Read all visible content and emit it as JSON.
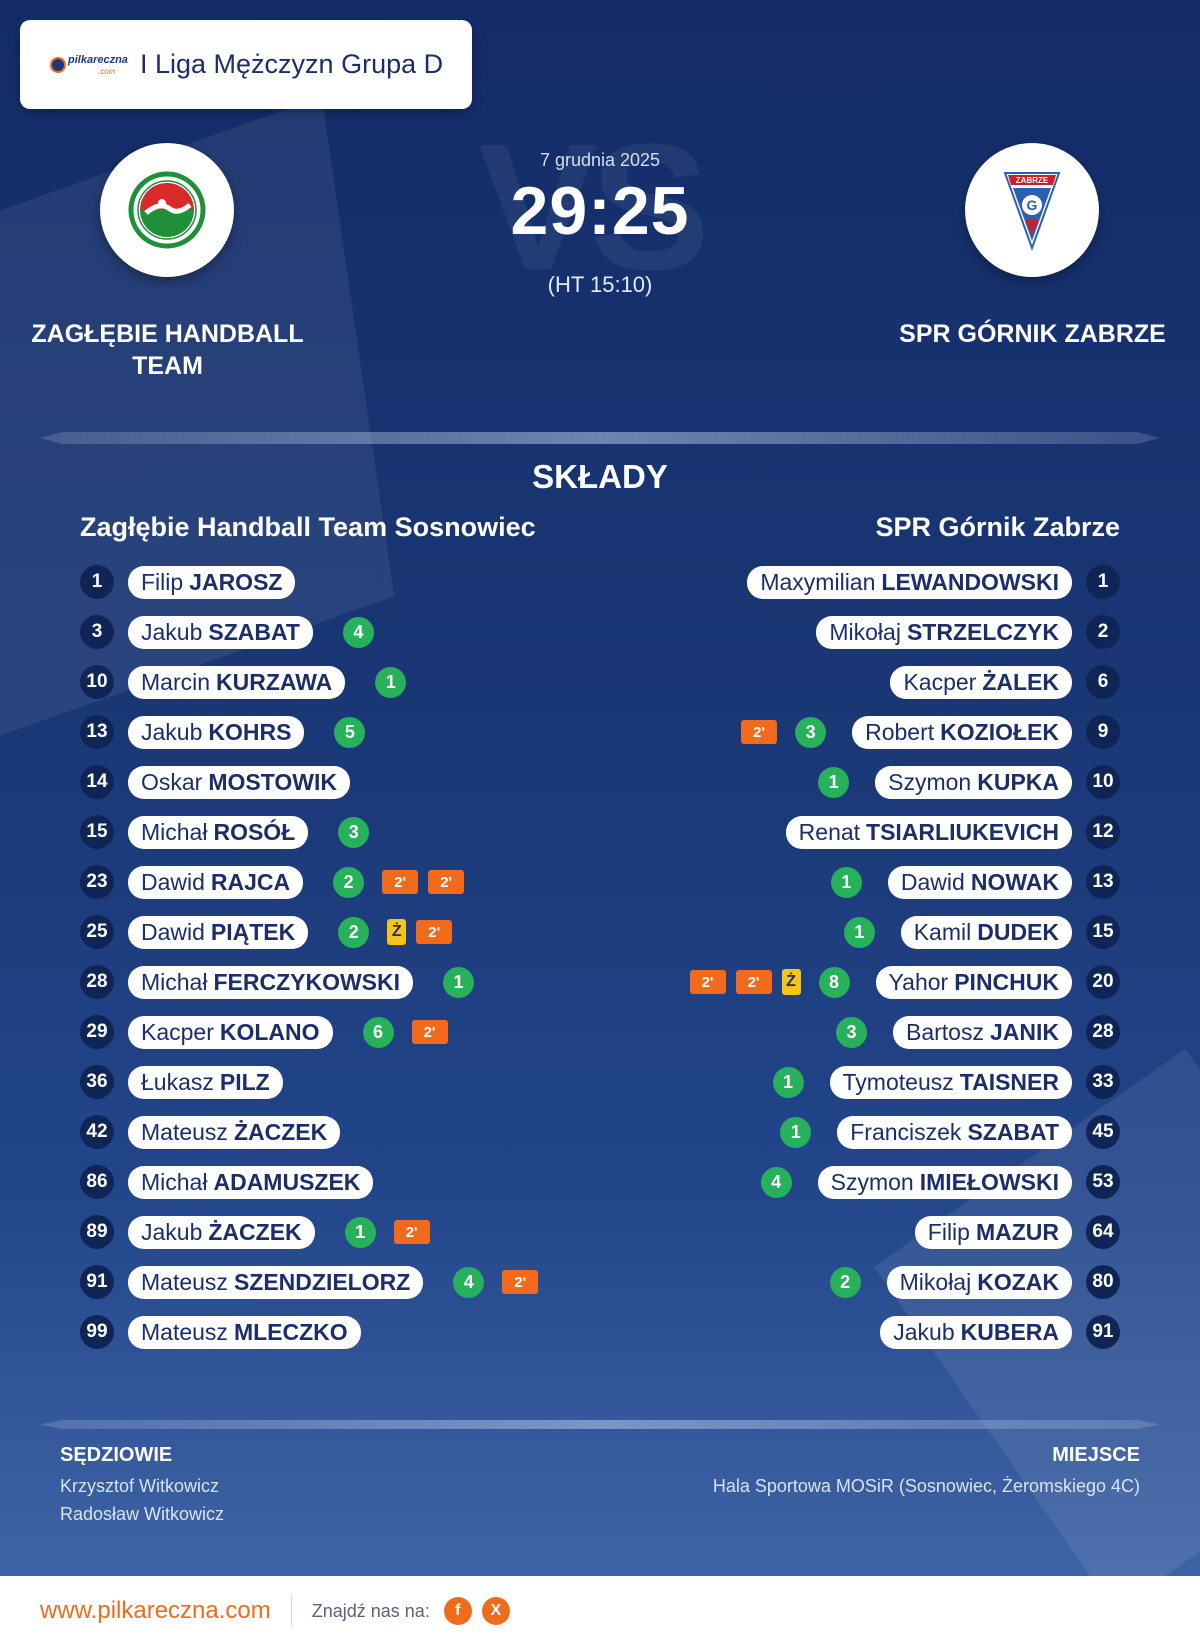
{
  "league": {
    "brand": "pilkareczna",
    "brand_sub": ".com",
    "name": "I Liga Mężczyzn Grupa D"
  },
  "match": {
    "date": "7 grudnia 2025",
    "score": "29:25",
    "halftime": "(HT 15:10)",
    "vs_text": "VS",
    "home_team": "ZAGŁĘBIE HANDBALL TEAM",
    "away_team": "SPR GÓRNIK ZABRZE",
    "away_badge_text": "ZABRZE"
  },
  "lineups": {
    "title": "SKŁADY",
    "home_title": "Zagłębie Handball Team Sosnowiec",
    "away_title": "SPR Górnik Zabrze",
    "home": [
      {
        "num": "1",
        "first": "Filip",
        "last": "JAROSZ",
        "goals": "",
        "yellow": false,
        "two_min": 0
      },
      {
        "num": "3",
        "first": "Jakub",
        "last": "SZABAT",
        "goals": "4",
        "yellow": false,
        "two_min": 0
      },
      {
        "num": "10",
        "first": "Marcin",
        "last": "KURZAWA",
        "goals": "1",
        "yellow": false,
        "two_min": 0
      },
      {
        "num": "13",
        "first": "Jakub",
        "last": "KOHRS",
        "goals": "5",
        "yellow": false,
        "two_min": 0
      },
      {
        "num": "14",
        "first": "Oskar",
        "last": "MOSTOWIK",
        "goals": "",
        "yellow": false,
        "two_min": 0
      },
      {
        "num": "15",
        "first": "Michał",
        "last": "ROSÓŁ",
        "goals": "3",
        "yellow": false,
        "two_min": 0
      },
      {
        "num": "23",
        "first": "Dawid",
        "last": "RAJCA",
        "goals": "2",
        "yellow": false,
        "two_min": 2
      },
      {
        "num": "25",
        "first": "Dawid",
        "last": "PIĄTEK",
        "goals": "2",
        "yellow": true,
        "two_min": 1
      },
      {
        "num": "28",
        "first": "Michał",
        "last": "FERCZYKOWSKI",
        "goals": "1",
        "yellow": false,
        "two_min": 0
      },
      {
        "num": "29",
        "first": "Kacper",
        "last": "KOLANO",
        "goals": "6",
        "yellow": false,
        "two_min": 1
      },
      {
        "num": "36",
        "first": "Łukasz",
        "last": "PILZ",
        "goals": "",
        "yellow": false,
        "two_min": 0
      },
      {
        "num": "42",
        "first": "Mateusz",
        "last": "ŻACZEK",
        "goals": "",
        "yellow": false,
        "two_min": 0
      },
      {
        "num": "86",
        "first": "Michał",
        "last": "ADAMUSZEK",
        "goals": "",
        "yellow": false,
        "two_min": 0
      },
      {
        "num": "89",
        "first": "Jakub",
        "last": "ŻACZEK",
        "goals": "1",
        "yellow": false,
        "two_min": 1
      },
      {
        "num": "91",
        "first": "Mateusz",
        "last": "SZENDZIELORZ",
        "goals": "4",
        "yellow": false,
        "two_min": 1
      },
      {
        "num": "99",
        "first": "Mateusz",
        "last": "MLECZKO",
        "goals": "",
        "yellow": false,
        "two_min": 0
      }
    ],
    "away": [
      {
        "num": "1",
        "first": "Maxymilian",
        "last": "LEWANDOWSKI",
        "goals": "",
        "yellow": false,
        "two_min": 0
      },
      {
        "num": "2",
        "first": "Mikołaj",
        "last": "STRZELCZYK",
        "goals": "",
        "yellow": false,
        "two_min": 0
      },
      {
        "num": "6",
        "first": "Kacper",
        "last": "ŻALEK",
        "goals": "",
        "yellow": false,
        "two_min": 0
      },
      {
        "num": "9",
        "first": "Robert",
        "last": "KOZIOŁEK",
        "goals": "3",
        "yellow": false,
        "two_min": 1
      },
      {
        "num": "10",
        "first": "Szymon",
        "last": "KUPKA",
        "goals": "1",
        "yellow": false,
        "two_min": 0
      },
      {
        "num": "12",
        "first": "Renat",
        "last": "TSIARLIUKEVICH",
        "goals": "",
        "yellow": false,
        "two_min": 0
      },
      {
        "num": "13",
        "first": "Dawid",
        "last": "NOWAK",
        "goals": "1",
        "yellow": false,
        "two_min": 0
      },
      {
        "num": "15",
        "first": "Kamil",
        "last": "DUDEK",
        "goals": "1",
        "yellow": false,
        "two_min": 0
      },
      {
        "num": "20",
        "first": "Yahor",
        "last": "PINCHUK",
        "goals": "8",
        "yellow": true,
        "two_min": 2
      },
      {
        "num": "28",
        "first": "Bartosz",
        "last": "JANIK",
        "goals": "3",
        "yellow": false,
        "two_min": 0
      },
      {
        "num": "33",
        "first": "Tymoteusz",
        "last": "TAISNER",
        "goals": "1",
        "yellow": false,
        "two_min": 0
      },
      {
        "num": "45",
        "first": "Franciszek",
        "last": "SZABAT",
        "goals": "1",
        "yellow": false,
        "two_min": 0
      },
      {
        "num": "53",
        "first": "Szymon",
        "last": "IMIEŁOWSKI",
        "goals": "4",
        "yellow": false,
        "two_min": 0
      },
      {
        "num": "64",
        "first": "Filip",
        "last": "MAZUR",
        "goals": "",
        "yellow": false,
        "two_min": 0
      },
      {
        "num": "80",
        "first": "Mikołaj",
        "last": "KOZAK",
        "goals": "2",
        "yellow": false,
        "two_min": 0
      },
      {
        "num": "91",
        "first": "Jakub",
        "last": "KUBERA",
        "goals": "",
        "yellow": false,
        "two_min": 0
      }
    ]
  },
  "cards": {
    "yellow_label": "Ż",
    "two_min_label": "2'"
  },
  "officials": {
    "referees_title": "SĘDZIOWIE",
    "referees": [
      "Krzysztof Witkowicz",
      "Radosław Witkowicz"
    ],
    "venue_title": "MIEJSCE",
    "venue": "Hala Sportowa MOSiR (Sosnowiec, Żeromskiego 4C)"
  },
  "footer": {
    "url": "www.pilkareczna.com",
    "find_us": "Znajdź nas na:",
    "social": [
      {
        "icon": "facebook-icon",
        "label": "f"
      },
      {
        "icon": "x-icon",
        "label": "X"
      }
    ]
  },
  "colors": {
    "accent": "#f26b1d",
    "goal": "#27b15a",
    "yellow_card": "#f5c518",
    "background": "#142d6a"
  }
}
